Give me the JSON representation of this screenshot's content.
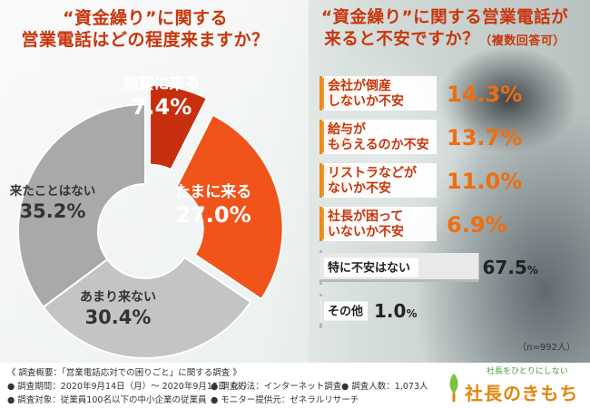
{
  "title_left": [
    "“資金繰り”に関する",
    "営業電話はどの程度来ますか？"
  ],
  "title_right": [
    "“資金繰り”に関する営業電話が",
    "来ると不安ですか？",
    "（複数回答可）"
  ],
  "sample_note": "（n=992人）",
  "footer": {
    "heading": "《 調査概要：「営業電話応対での困りごと」に関する調査 》",
    "period": "● 調査期間：2020年9月14日（月）～ 2020年9月15日（火）",
    "method": "● 調査方法：インターネット調査",
    "people": "● 調査人数：1,073人",
    "target": "● 調査対象：従業員100名以下の中小企業の従業員",
    "provider": "● モニター提供元：ゼネラルリサーチ"
  },
  "logo": {
    "tagline": "社長をひとりにしない",
    "name": "社長のきもち"
  },
  "colors": {
    "title": "#c9350c",
    "pie_freq": "#c82f0f",
    "pie_sometimes": "#f0541b",
    "pie_rarely": "#c4c4c4",
    "pie_never": "#a9a9a9",
    "bar_orange": "#ee8a12",
    "bar_gray": "#b8b8b8",
    "pct_orange": "#ee6e12"
  },
  "chart_data": [
    {
      "type": "pie",
      "donut": true,
      "title": "“資金繰り”に関する営業電話はどの程度来ますか？",
      "unit": "%",
      "slices": [
        {
          "label": "頻繁に来る",
          "value": 7.4,
          "display": "7.4%"
        },
        {
          "label": "たまに来る",
          "value": 27.0,
          "display": "27.0%"
        },
        {
          "label": "あまり来ない",
          "value": 30.4,
          "display": "30.4%"
        },
        {
          "label": "来たことはない",
          "value": 35.2,
          "display": "35.2%"
        }
      ]
    },
    {
      "type": "bar",
      "orientation": "horizontal",
      "title": "“資金繰り”に関する営業電話が来ると不安ですか？（複数回答可）",
      "unit": "%",
      "xlim": [
        0,
        100
      ],
      "categories": [
        [
          "会社が倒産",
          "しないか不安"
        ],
        [
          "給与が",
          "もらえるのか不安"
        ],
        [
          "リストラなどが",
          "ないか不安"
        ],
        [
          "社長が困って",
          "いないか不安"
        ],
        [
          "特に不安はない"
        ],
        [
          "その他"
        ]
      ],
      "values": [
        14.3,
        13.7,
        11.0,
        6.9,
        67.5,
        1.0
      ],
      "labels": [
        [
          "14.3",
          "%"
        ],
        [
          "13.7",
          "%"
        ],
        [
          "11.0",
          "%"
        ],
        [
          "6.9",
          "%"
        ],
        [
          "67.5",
          "%"
        ],
        [
          "1.0",
          "%"
        ]
      ],
      "bar_colors": [
        "orange",
        "orange",
        "orange",
        "orange",
        "gray",
        "gray"
      ]
    }
  ]
}
